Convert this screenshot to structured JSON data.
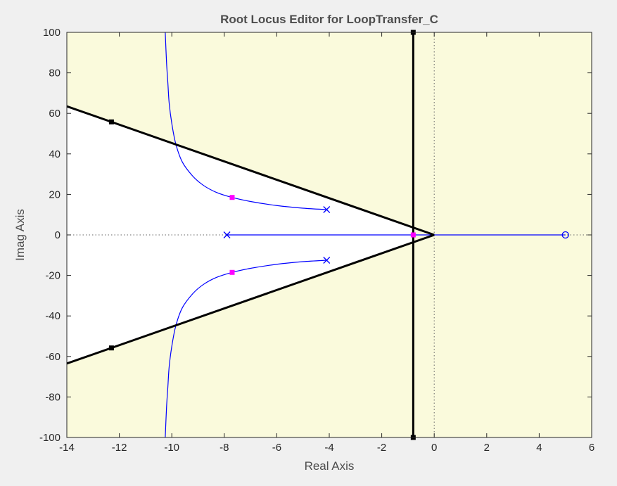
{
  "chart_data": {
    "type": "line",
    "title": "Root Locus Editor for LoopTransfer_C",
    "xlabel": "Real Axis",
    "ylabel": "Imag Axis",
    "xlim": [
      -14,
      6
    ],
    "ylim": [
      -100,
      100
    ],
    "xticks": [
      "-14",
      "-12",
      "-10",
      "-8",
      "-6",
      "-4",
      "-2",
      "0",
      "2",
      "4",
      "6"
    ],
    "yticks": [
      "-100",
      "-80",
      "-60",
      "-40",
      "-20",
      "0",
      "20",
      "40",
      "60",
      "80",
      "100"
    ],
    "grid": false,
    "colors": {
      "allowed_region": "#ffffff",
      "forbidden_region": "#fafadc",
      "locus": "#0000ff",
      "design_constraint": "#000000",
      "closed_loop_pole": "#ff00ff",
      "reference_line": "#666666"
    },
    "open_loop_poles": [
      {
        "re": -4.1,
        "im": 12.5
      },
      {
        "re": -4.1,
        "im": -12.5
      },
      {
        "re": -7.9,
        "im": 0
      }
    ],
    "open_loop_zeros": [
      {
        "re": 5.0,
        "im": 0
      }
    ],
    "closed_loop_poles": [
      {
        "re": -7.7,
        "im": 18.5
      },
      {
        "re": -7.7,
        "im": -18.5
      },
      {
        "re": -0.8,
        "im": 0
      }
    ],
    "series": [
      {
        "points": [
          [
            -4.1,
            12.5
          ],
          [
            -5.0,
            13.2
          ],
          [
            -6.0,
            14.5
          ],
          [
            -7.0,
            16.5
          ],
          [
            -7.7,
            18.5
          ],
          [
            -8.3,
            21.0
          ],
          [
            -8.8,
            24.5
          ],
          [
            -9.2,
            29.0
          ],
          [
            -9.6,
            36.0
          ],
          [
            -9.85,
            45.0
          ],
          [
            -10.0,
            55.0
          ],
          [
            -10.1,
            65.0
          ],
          [
            -10.15,
            75.0
          ],
          [
            -10.2,
            85.0
          ],
          [
            -10.25,
            100.0
          ]
        ]
      },
      {
        "points": [
          [
            -4.1,
            -12.5
          ],
          [
            -5.0,
            -13.2
          ],
          [
            -6.0,
            -14.5
          ],
          [
            -7.0,
            -16.5
          ],
          [
            -7.7,
            -18.5
          ],
          [
            -8.3,
            -21.0
          ],
          [
            -8.8,
            -24.5
          ],
          [
            -9.2,
            -29.0
          ],
          [
            -9.6,
            -36.0
          ],
          [
            -9.85,
            -45.0
          ],
          [
            -10.0,
            -55.0
          ],
          [
            -10.1,
            -65.0
          ],
          [
            -10.15,
            -75.0
          ],
          [
            -10.2,
            -85.0
          ],
          [
            -10.25,
            -100.0
          ]
        ]
      },
      {
        "points": [
          [
            -7.9,
            0
          ],
          [
            5.0,
            0
          ]
        ]
      }
    ],
    "design_constraints": {
      "damping_lines": [
        {
          "points": [
            [
              0,
              0
            ],
            [
              -14,
              63.5
            ]
          ],
          "handle": {
            "re": -12.3,
            "im": 55.8
          }
        },
        {
          "points": [
            [
              0,
              0
            ],
            [
              -14,
              -63.5
            ]
          ],
          "handle": {
            "re": -12.3,
            "im": -55.8
          }
        }
      ],
      "settling_time_line": {
        "re": -0.8,
        "handles": [
          100,
          -100
        ]
      }
    }
  }
}
